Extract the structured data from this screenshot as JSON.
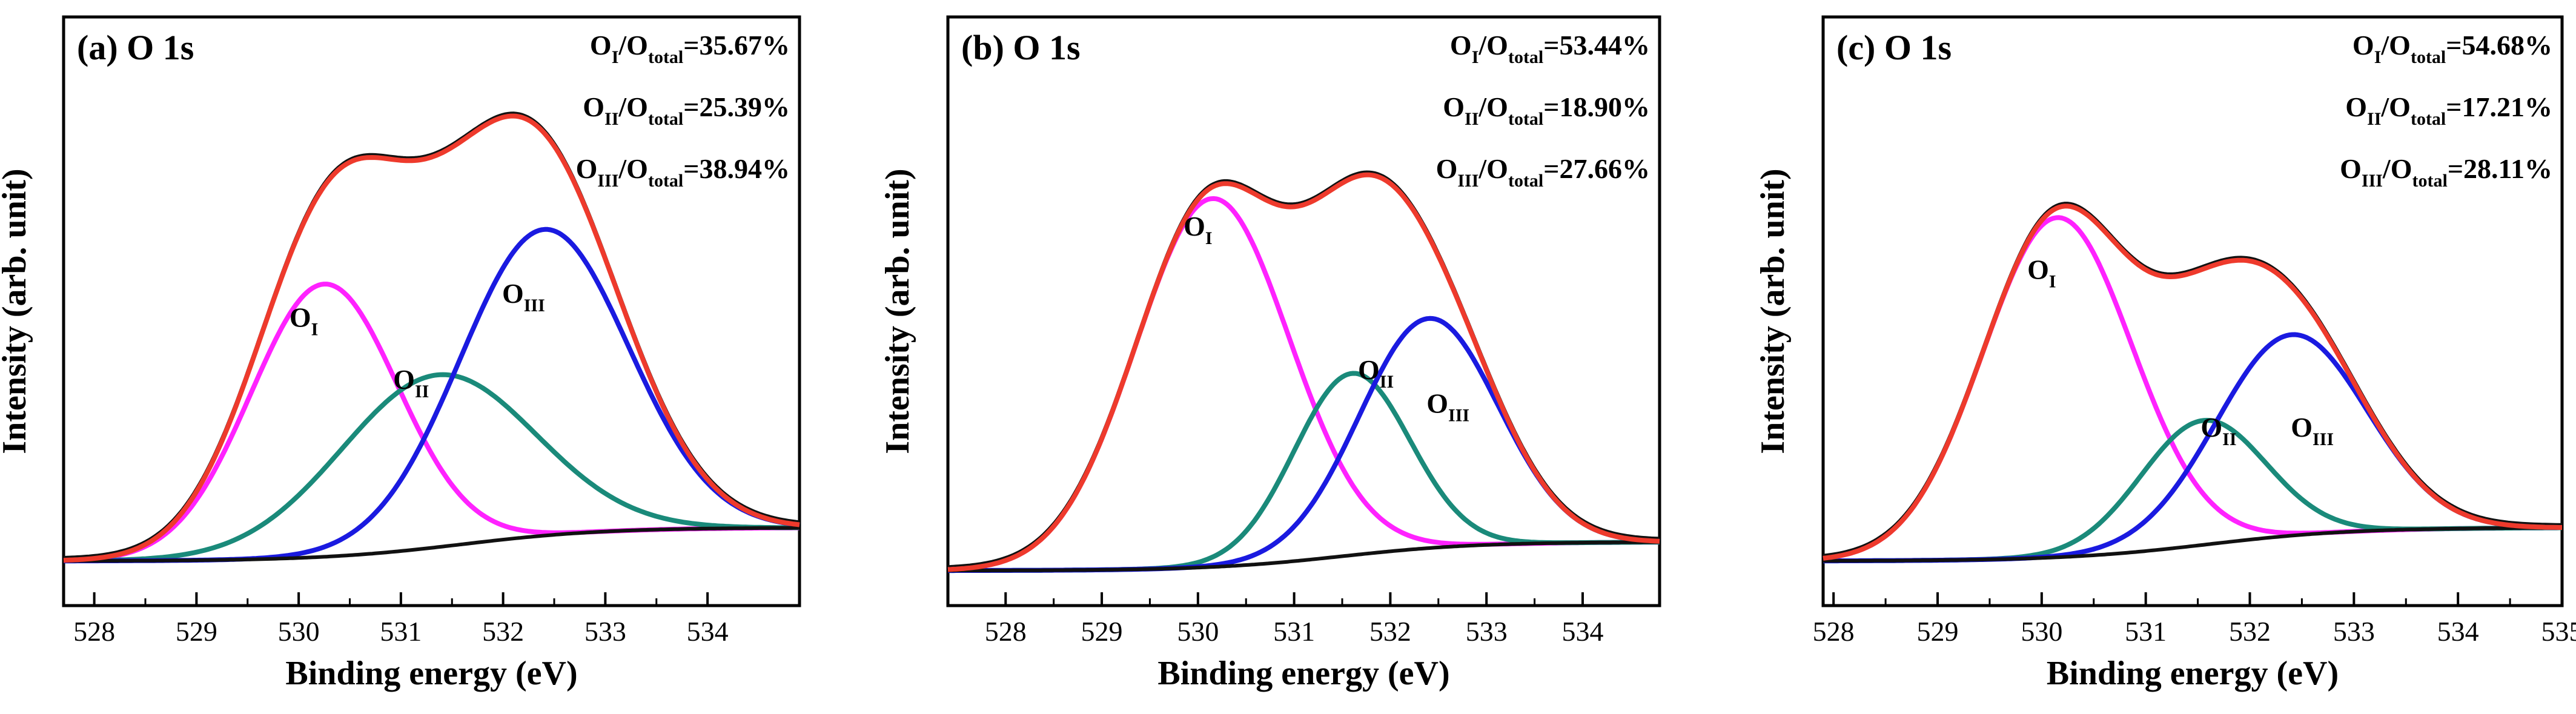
{
  "figure": {
    "x_axis_label": "Binding energy (eV)",
    "y_axis_label": "Intensity (arb. unit)"
  },
  "colors": {
    "envelope": "#ee3a2c",
    "raw": "#111111",
    "O_I": "#ff22ff",
    "O_II": "#1a8a7a",
    "O_III": "#1a1ae0",
    "background": "#111111",
    "axis": "#000000"
  },
  "chart_data": [
    {
      "type": "line",
      "title": "(a) O 1s",
      "xlabel": "Binding energy (eV)",
      "ylabel": "Intensity (arb. unit)",
      "xlim": [
        527.7,
        534.9
      ],
      "ylim": [
        0,
        100
      ],
      "xticks": [
        528,
        529,
        530,
        531,
        532,
        533,
        534
      ],
      "ratios": [
        {
          "base": "O",
          "sub": "I",
          "mid": "/O",
          "sub2": "total",
          "value": "=35.67%"
        },
        {
          "base": "O",
          "sub": "II",
          "mid": "/O",
          "sub2": "total",
          "value": "=25.39%"
        },
        {
          "base": "O",
          "sub": "III",
          "mid": "/O",
          "sub2": "total",
          "value": "=38.94%"
        }
      ],
      "background": {
        "start": 530.0,
        "lo": 4,
        "hi": 11
      },
      "peaks": [
        {
          "name": "O_I",
          "label_base": "O",
          "label_sub": "I",
          "center": 530.25,
          "height": 57,
          "sigma": 0.72,
          "label_x": 530.05,
          "label_y": 53
        },
        {
          "name": "O_II",
          "label_base": "O",
          "label_sub": "II",
          "center": 531.35,
          "height": 36,
          "sigma": 0.95,
          "label_x": 531.1,
          "label_y": 40
        },
        {
          "name": "O_III",
          "label_base": "O",
          "label_sub": "III",
          "center": 532.4,
          "height": 64,
          "sigma": 0.82,
          "label_x": 532.2,
          "label_y": 58
        }
      ]
    },
    {
      "type": "line",
      "title": "(b)  O 1s",
      "xlabel": "Binding energy (eV)",
      "ylabel": "Intensity (arb. unit)",
      "xlim": [
        527.4,
        534.8
      ],
      "ylim": [
        0,
        100
      ],
      "xticks": [
        528,
        529,
        530,
        531,
        532,
        533,
        534
      ],
      "ratios": [
        {
          "base": "O",
          "sub": "I",
          "mid": "/O",
          "sub2": "total",
          "value": "=53.44%"
        },
        {
          "base": "O",
          "sub": "II",
          "mid": "/O",
          "sub2": "total",
          "value": "=18.90%"
        },
        {
          "base": "O",
          "sub": "III",
          "mid": "/O",
          "sub2": "total",
          "value": "=27.66%"
        }
      ],
      "background": {
        "start": 529.9,
        "lo": 2,
        "hi": 8
      },
      "peaks": [
        {
          "name": "O_I",
          "label_base": "O",
          "label_sub": "I",
          "center": 530.15,
          "height": 77,
          "sigma": 0.8,
          "label_x": 530.0,
          "label_y": 72
        },
        {
          "name": "O_II",
          "label_base": "O",
          "label_sub": "II",
          "center": 531.6,
          "height": 38,
          "sigma": 0.6,
          "label_x": 531.85,
          "label_y": 42
        },
        {
          "name": "O_III",
          "label_base": "O",
          "label_sub": "III",
          "center": 532.4,
          "height": 48,
          "sigma": 0.72,
          "label_x": 532.6,
          "label_y": 35
        }
      ]
    },
    {
      "type": "line",
      "title": "(c) O 1s",
      "xlabel": "Binding energy (eV)",
      "ylabel": "Intensity (arb. unit)",
      "xlim": [
        527.9,
        535.0
      ],
      "ylim": [
        0,
        100
      ],
      "xticks": [
        528,
        529,
        530,
        531,
        532,
        533,
        534,
        535
      ],
      "ratios": [
        {
          "base": "O",
          "sub": "I",
          "mid": "/O",
          "sub2": "total",
          "value": "=54.68%"
        },
        {
          "base": "O",
          "sub": "II",
          "mid": "/O",
          "sub2": "total",
          "value": "=17.21%"
        },
        {
          "base": "O",
          "sub": "III",
          "mid": "/O",
          "sub2": "total",
          "value": "=28.11%"
        }
      ],
      "background": {
        "start": 530.0,
        "lo": 4,
        "hi": 11
      },
      "peaks": [
        {
          "name": "O_I",
          "label_base": "O",
          "label_sub": "I",
          "center": 530.15,
          "height": 71,
          "sigma": 0.72,
          "label_x": 530.0,
          "label_y": 63
        },
        {
          "name": "O_II",
          "label_base": "O",
          "label_sub": "II",
          "center": 531.55,
          "height": 26,
          "sigma": 0.6,
          "label_x": 531.7,
          "label_y": 30
        },
        {
          "name": "O_III",
          "label_base": "O",
          "label_sub": "III",
          "center": 532.4,
          "height": 42,
          "sigma": 0.72,
          "label_x": 532.6,
          "label_y": 30
        }
      ]
    }
  ]
}
